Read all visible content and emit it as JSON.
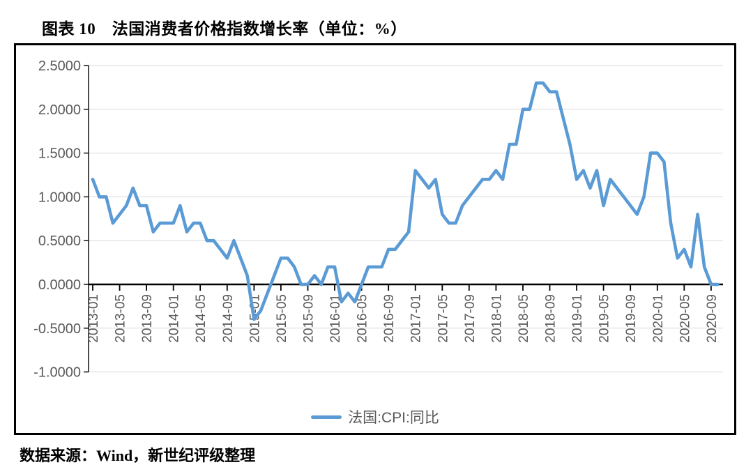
{
  "page": {
    "title": "图表 10　法国消费者价格指数增长率（单位：%）",
    "source": "数据来源：Wind，新世纪评级整理"
  },
  "legend": {
    "label": "法国:CPI:同比"
  },
  "colors": {
    "line": "#5B9BD5",
    "axis": "#000000",
    "grid": "#D9D9D9",
    "tick_label": "#595959"
  },
  "chart_data": {
    "type": "line",
    "title": "法国消费者价格指数增长率（单位：%）",
    "xlabel": "",
    "ylabel": "",
    "ylim": [
      -1.0,
      2.5
    ],
    "grid": true,
    "legend_position": "bottom",
    "x": [
      "2013-01",
      "2013-02",
      "2013-03",
      "2013-04",
      "2013-05",
      "2013-06",
      "2013-07",
      "2013-08",
      "2013-09",
      "2013-10",
      "2013-11",
      "2013-12",
      "2014-01",
      "2014-02",
      "2014-03",
      "2014-04",
      "2014-05",
      "2014-06",
      "2014-07",
      "2014-08",
      "2014-09",
      "2014-10",
      "2014-11",
      "2014-12",
      "2015-01",
      "2015-02",
      "2015-03",
      "2015-04",
      "2015-05",
      "2015-06",
      "2015-07",
      "2015-08",
      "2015-09",
      "2015-10",
      "2015-11",
      "2015-12",
      "2016-01",
      "2016-02",
      "2016-03",
      "2016-04",
      "2016-05",
      "2016-06",
      "2016-07",
      "2016-08",
      "2016-09",
      "2016-10",
      "2016-11",
      "2016-12",
      "2017-01",
      "2017-02",
      "2017-03",
      "2017-04",
      "2017-05",
      "2017-06",
      "2017-07",
      "2017-08",
      "2017-09",
      "2017-10",
      "2017-11",
      "2017-12",
      "2018-01",
      "2018-02",
      "2018-03",
      "2018-04",
      "2018-05",
      "2018-06",
      "2018-07",
      "2018-08",
      "2018-09",
      "2018-10",
      "2018-11",
      "2018-12",
      "2019-01",
      "2019-02",
      "2019-03",
      "2019-04",
      "2019-05",
      "2019-06",
      "2019-07",
      "2019-08",
      "2019-09",
      "2019-10",
      "2019-11",
      "2019-12",
      "2020-01",
      "2020-02",
      "2020-03",
      "2020-04",
      "2020-05",
      "2020-06",
      "2020-07",
      "2020-08",
      "2020-09",
      "2020-10"
    ],
    "series": [
      {
        "name": "法国:CPI:同比",
        "values": [
          1.2,
          1.0,
          1.0,
          0.7,
          0.8,
          0.9,
          1.1,
          0.9,
          0.9,
          0.6,
          0.7,
          0.7,
          0.7,
          0.9,
          0.6,
          0.7,
          0.7,
          0.5,
          0.5,
          0.4,
          0.3,
          0.5,
          0.3,
          0.1,
          -0.4,
          -0.3,
          -0.1,
          0.1,
          0.3,
          0.3,
          0.2,
          0.0,
          0.0,
          0.1,
          0.0,
          0.2,
          0.2,
          -0.2,
          -0.1,
          -0.2,
          0.0,
          0.2,
          0.2,
          0.2,
          0.4,
          0.4,
          0.5,
          0.6,
          1.3,
          1.2,
          1.1,
          1.2,
          0.8,
          0.7,
          0.7,
          0.9,
          1.0,
          1.1,
          1.2,
          1.2,
          1.3,
          1.2,
          1.6,
          1.6,
          2.0,
          2.0,
          2.3,
          2.3,
          2.2,
          2.2,
          1.9,
          1.6,
          1.2,
          1.3,
          1.1,
          1.3,
          0.9,
          1.2,
          1.1,
          1.0,
          0.9,
          0.8,
          1.0,
          1.5,
          1.5,
          1.4,
          0.7,
          0.3,
          0.4,
          0.2,
          0.8,
          0.2,
          0.0,
          0.0
        ]
      }
    ],
    "y_tick_values": [
      2.5,
      2.0,
      1.5,
      1.0,
      0.5,
      0.0,
      -0.5,
      -1.0
    ],
    "y_tick_labels": [
      "2.5000",
      "2.0000",
      "1.5000",
      "1.0000",
      "0.5000",
      "0.0000",
      "-0.5000",
      "-1.0000"
    ],
    "x_tick_labels": [
      "2013-01",
      "2013-05",
      "2013-09",
      "2014-01",
      "2014-05",
      "2014-09",
      "2015-01",
      "2015-05",
      "2015-09",
      "2016-01",
      "2016-05",
      "2016-09",
      "2017-01",
      "2017-05",
      "2017-09",
      "2018-01",
      "2018-05",
      "2018-09",
      "2019-01",
      "2019-05",
      "2019-09",
      "2020-01",
      "2020-05",
      "2020-09"
    ]
  }
}
